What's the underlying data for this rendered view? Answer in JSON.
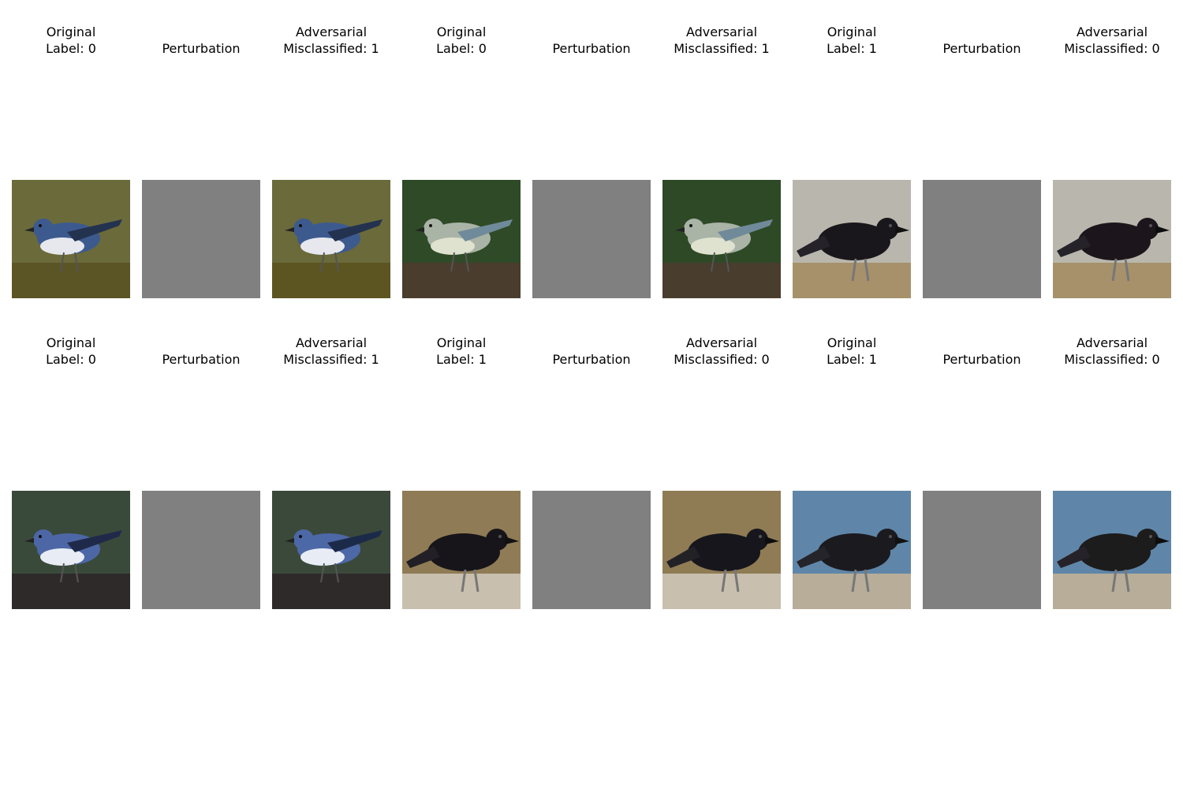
{
  "figure": {
    "rows": [
      {
        "samples": [
          {
            "subject": "warbler",
            "original_title": "Original\nLabel: 0",
            "perturbation_title": "Perturbation",
            "adversarial_title": "Adversarial\nMisclassified: 1",
            "colors": {
              "bg": "#6b6a3a",
              "ground": "#5b5424",
              "body": "#3d5a8f",
              "belly": "#e6e8ee",
              "accent": "#23324f"
            }
          },
          {
            "subject": "warbler",
            "original_title": "Original\nLabel: 0",
            "perturbation_title": "Perturbation",
            "adversarial_title": "Adversarial\nMisclassified: 1",
            "colors": {
              "bg": "#2f4a26",
              "ground": "#4a3d2e",
              "body": "#a9b3a6",
              "belly": "#dfe2cf",
              "accent": "#6f8a9a"
            }
          },
          {
            "subject": "crow",
            "original_title": "Original\nLabel: 1",
            "perturbation_title": "Perturbation",
            "adversarial_title": "Adversarial\nMisclassified: 0",
            "colors": {
              "bg": "#b9b7ad",
              "ground": "#a6916a",
              "body": "#1a171c",
              "belly": "#262229",
              "accent": "#3a3540"
            }
          }
        ]
      },
      {
        "samples": [
          {
            "subject": "warbler",
            "original_title": "Original\nLabel: 0",
            "perturbation_title": "Perturbation",
            "adversarial_title": "Adversarial\nMisclassified: 1",
            "colors": {
              "bg": "#3a4a3a",
              "ground": "#2e2a2a",
              "body": "#4d67a6",
              "belly": "#e8ecf5",
              "accent": "#1f2a4a"
            }
          },
          {
            "subject": "crow",
            "original_title": "Original\nLabel: 1",
            "perturbation_title": "Perturbation",
            "adversarial_title": "Adversarial\nMisclassified: 0",
            "colors": {
              "bg": "#8f7b55",
              "ground": "#c9bfae",
              "body": "#17151a",
              "belly": "#222026",
              "accent": "#39343f"
            }
          },
          {
            "subject": "crow",
            "original_title": "Original\nLabel: 1",
            "perturbation_title": "Perturbation",
            "adversarial_title": "Adversarial\nMisclassified: 0",
            "colors": {
              "bg": "#5f86a8",
              "ground": "#b7ad98",
              "body": "#1b1a1f",
              "belly": "#25242a",
              "accent": "#f2f2f2"
            }
          }
        ]
      }
    ]
  }
}
